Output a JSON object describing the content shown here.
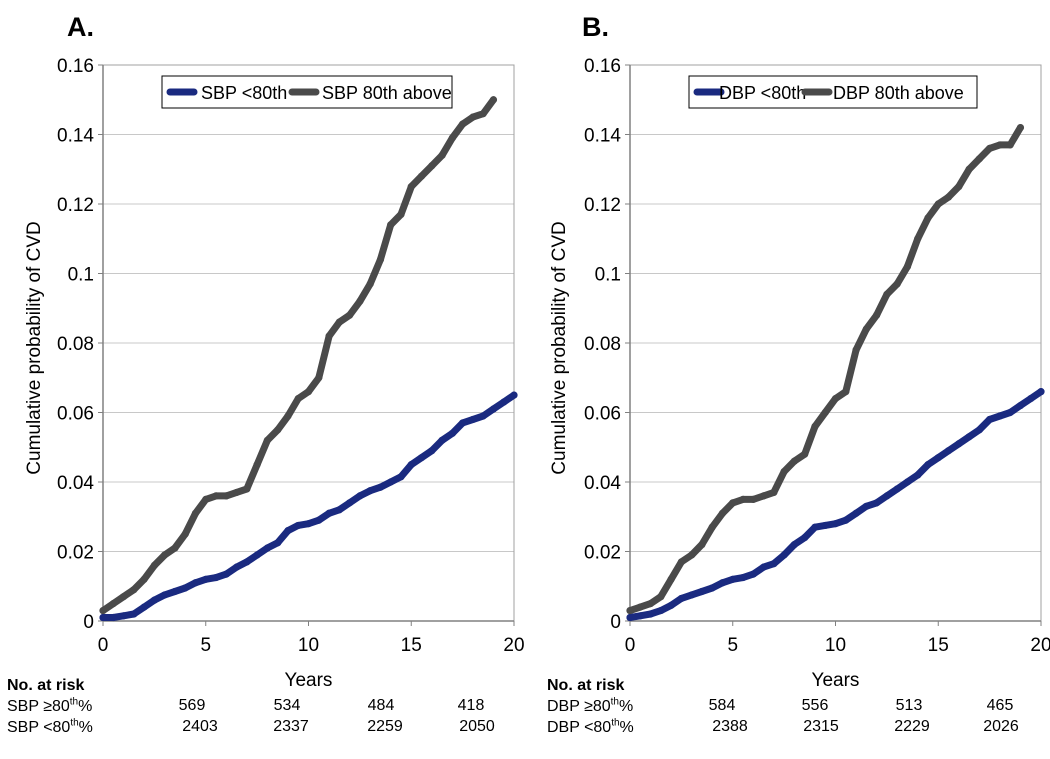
{
  "chart_data": [
    {
      "type": "line",
      "panel_label": "A.",
      "xlabel": "Years",
      "ylabel": "Cumulative probability of CVD",
      "xlim": [
        0,
        20
      ],
      "ylim": [
        0,
        0.16
      ],
      "x_ticks": [
        "0",
        "5",
        "10",
        "15",
        "20"
      ],
      "y_ticks": [
        "0",
        "0.02",
        "0.04",
        "0.06",
        "0.08",
        "0.1",
        "0.12",
        "0.14",
        "0.16"
      ],
      "grid": "horizontal",
      "legend_position": "top-center",
      "series": [
        {
          "name": "SBP <80th",
          "color": "#1a2a80",
          "x": [
            0,
            0.5,
            1.0,
            1.5,
            2.0,
            2.5,
            3.0,
            3.5,
            4.0,
            4.5,
            5.0,
            5.5,
            6.0,
            6.5,
            7.0,
            7.5,
            8.0,
            8.5,
            9.0,
            9.5,
            10.0,
            10.5,
            11.0,
            11.5,
            12.0,
            12.5,
            13.0,
            13.5,
            14.0,
            14.5,
            15.0,
            15.5,
            16.0,
            16.5,
            17.0,
            17.5,
            18.0,
            18.5,
            19.0,
            19.5,
            20.0
          ],
          "y": [
            0.001,
            0.001,
            0.0015,
            0.002,
            0.004,
            0.006,
            0.0075,
            0.0085,
            0.0095,
            0.011,
            0.012,
            0.0125,
            0.0135,
            0.0155,
            0.017,
            0.019,
            0.021,
            0.0225,
            0.026,
            0.0275,
            0.028,
            0.029,
            0.031,
            0.032,
            0.034,
            0.036,
            0.0375,
            0.0385,
            0.04,
            0.0415,
            0.045,
            0.047,
            0.049,
            0.052,
            0.054,
            0.057,
            0.058,
            0.059,
            0.061,
            0.063,
            0.065
          ]
        },
        {
          "name": "SBP 80th above",
          "color": "#4a4a4a",
          "x": [
            0,
            0.5,
            1.0,
            1.5,
            2.0,
            2.5,
            3.0,
            3.5,
            4.0,
            4.5,
            5.0,
            5.5,
            6.0,
            6.5,
            7.0,
            7.5,
            8.0,
            8.5,
            9.0,
            9.5,
            10.0,
            10.5,
            11.0,
            11.5,
            12.0,
            12.5,
            13.0,
            13.5,
            14.0,
            14.5,
            15.0,
            15.5,
            16.0,
            16.5,
            17.0,
            17.5,
            18.0,
            18.5,
            19.0
          ],
          "y": [
            0.003,
            0.005,
            0.007,
            0.009,
            0.012,
            0.016,
            0.019,
            0.021,
            0.025,
            0.031,
            0.035,
            0.036,
            0.036,
            0.037,
            0.038,
            0.045,
            0.052,
            0.055,
            0.059,
            0.064,
            0.066,
            0.07,
            0.082,
            0.086,
            0.088,
            0.092,
            0.097,
            0.104,
            0.114,
            0.117,
            0.125,
            0.128,
            0.131,
            0.134,
            0.139,
            0.143,
            0.145,
            0.146,
            0.15
          ]
        }
      ],
      "risk_table": {
        "title": "No. at risk",
        "rows": [
          {
            "group": "SBP",
            "op": "≥80",
            "sup": "th",
            "pct": "%",
            "values": [
              "569",
              "534",
              "484",
              "418"
            ]
          },
          {
            "group": "SBP",
            "op": "<80",
            "sup": "th",
            "pct": "%",
            "values": [
              "2403",
              "2337",
              "2259",
              "2050"
            ]
          }
        ]
      }
    },
    {
      "type": "line",
      "panel_label": "B.",
      "xlabel": "Years",
      "ylabel": "Cumulative probability of CVD",
      "xlim": [
        0,
        20
      ],
      "ylim": [
        0,
        0.16
      ],
      "x_ticks": [
        "0",
        "5",
        "10",
        "15",
        "20"
      ],
      "y_ticks": [
        "0",
        "0.02",
        "0.04",
        "0.06",
        "0.08",
        "0.1",
        "0.12",
        "0.14",
        "0.16"
      ],
      "grid": "horizontal",
      "legend_position": "top-right",
      "series": [
        {
          "name": "DBP <80th",
          "color": "#1a2a80",
          "x": [
            0,
            0.5,
            1.0,
            1.5,
            2.0,
            2.5,
            3.0,
            3.5,
            4.0,
            4.5,
            5.0,
            5.5,
            6.0,
            6.5,
            7.0,
            7.5,
            8.0,
            8.5,
            9.0,
            9.5,
            10.0,
            10.5,
            11.0,
            11.5,
            12.0,
            12.5,
            13.0,
            13.5,
            14.0,
            14.5,
            15.0,
            15.5,
            16.0,
            16.5,
            17.0,
            17.5,
            18.0,
            18.5,
            19.0,
            19.5,
            20.0
          ],
          "y": [
            0.001,
            0.0015,
            0.002,
            0.003,
            0.0045,
            0.0065,
            0.0075,
            0.0085,
            0.0095,
            0.011,
            0.012,
            0.0125,
            0.0135,
            0.0155,
            0.0165,
            0.019,
            0.022,
            0.024,
            0.027,
            0.0275,
            0.028,
            0.029,
            0.031,
            0.033,
            0.034,
            0.036,
            0.038,
            0.04,
            0.042,
            0.045,
            0.047,
            0.049,
            0.051,
            0.053,
            0.055,
            0.058,
            0.059,
            0.06,
            0.062,
            0.064,
            0.066
          ]
        },
        {
          "name": "DBP 80th above",
          "color": "#4a4a4a",
          "x": [
            0,
            0.5,
            1.0,
            1.5,
            2.0,
            2.5,
            3.0,
            3.5,
            4.0,
            4.5,
            5.0,
            5.5,
            6.0,
            6.5,
            7.0,
            7.5,
            8.0,
            8.5,
            9.0,
            9.5,
            10.0,
            10.5,
            11.0,
            11.5,
            12.0,
            12.5,
            13.0,
            13.5,
            14.0,
            14.5,
            15.0,
            15.5,
            16.0,
            16.5,
            17.0,
            17.5,
            18.0,
            18.5,
            19.0
          ],
          "y": [
            0.003,
            0.004,
            0.005,
            0.007,
            0.012,
            0.017,
            0.019,
            0.022,
            0.027,
            0.031,
            0.034,
            0.035,
            0.035,
            0.036,
            0.037,
            0.043,
            0.046,
            0.048,
            0.056,
            0.06,
            0.064,
            0.066,
            0.078,
            0.084,
            0.088,
            0.094,
            0.097,
            0.102,
            0.11,
            0.116,
            0.12,
            0.122,
            0.125,
            0.13,
            0.133,
            0.136,
            0.137,
            0.137,
            0.142
          ]
        }
      ],
      "risk_table": {
        "title": "No. at risk",
        "rows": [
          {
            "group": "DBP",
            "op": "≥80",
            "sup": "th",
            "pct": "%",
            "values": [
              "584",
              "556",
              "513",
              "465"
            ]
          },
          {
            "group": "DBP",
            "op": "<80",
            "sup": "th",
            "pct": "%",
            "values": [
              "2388",
              "2315",
              "2229",
              "2026"
            ]
          }
        ]
      }
    }
  ]
}
